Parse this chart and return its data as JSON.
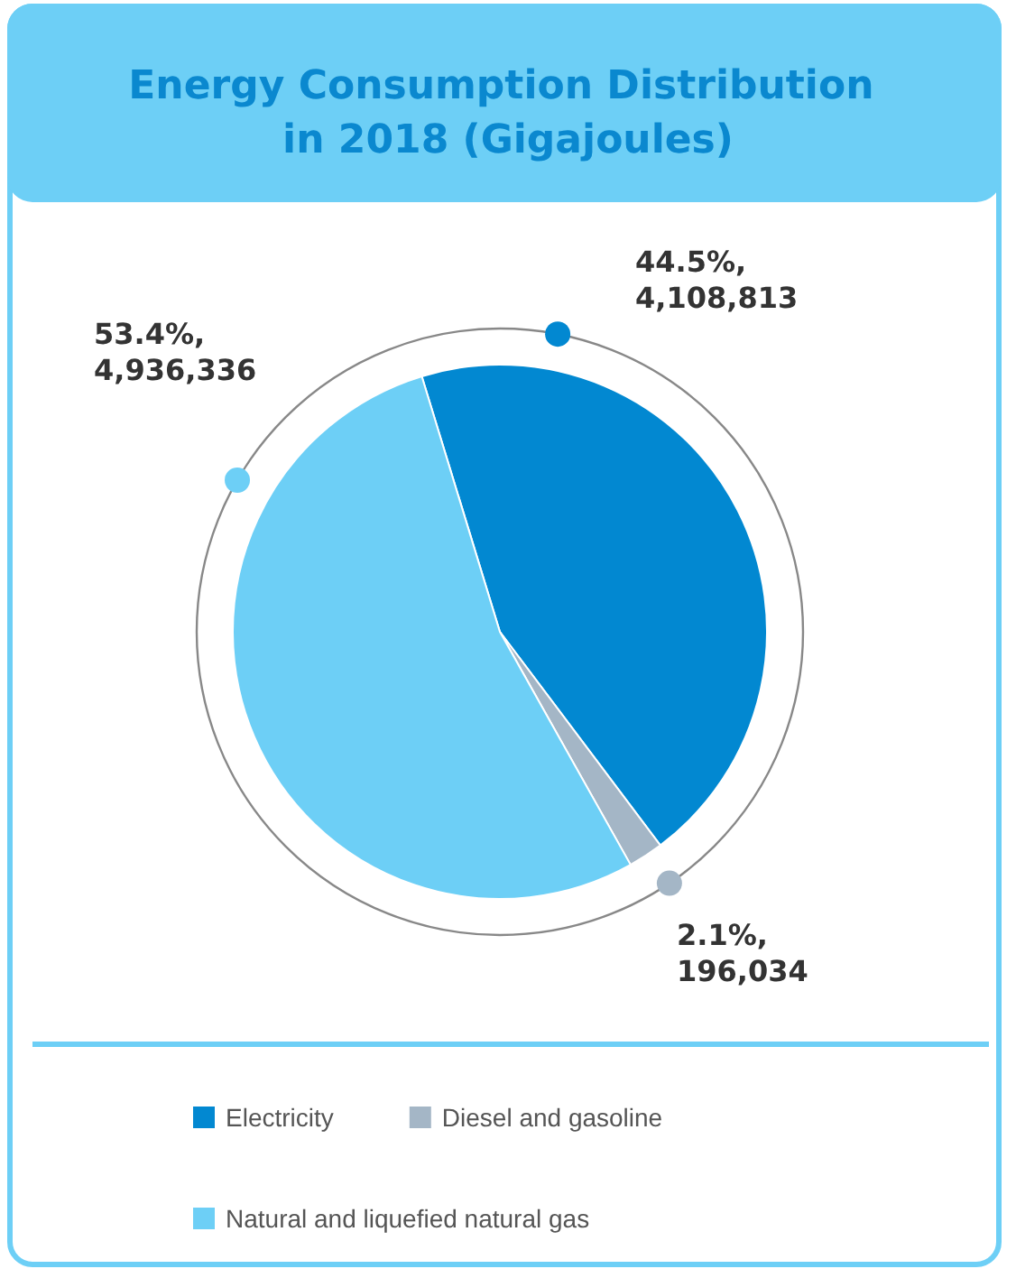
{
  "chart_data": {
    "type": "pie",
    "title": "Energy Consumption Distribution in 2018 (Gigajoules)",
    "categories": [
      "Electricity",
      "Diesel and gasoline",
      "Natural and liquefied natural gas"
    ],
    "values": [
      4108813,
      196034,
      4936336
    ],
    "colors": [
      "#0288d1",
      "#a4b6c6",
      "#6dcff6"
    ],
    "value_labels": [
      "44.5%,\n4,108,813",
      "2.1%,\n196,034",
      "53.4%,\n4,936,336"
    ],
    "legend": "bottom"
  }
}
